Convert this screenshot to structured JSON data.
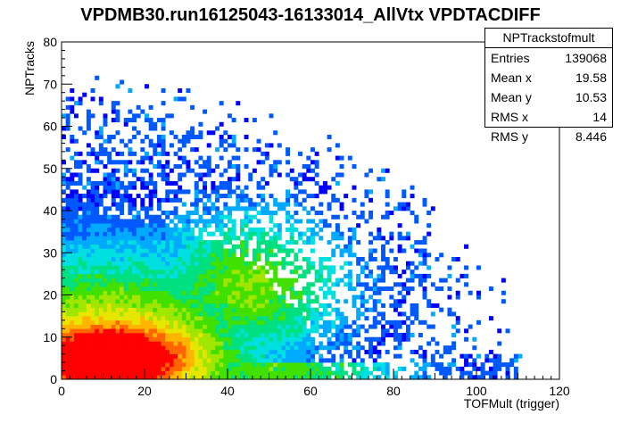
{
  "chart_data": {
    "type": "heatmap",
    "title": "VPDMB30.run16125043-16133014_AllVtx VPDTACDIFF",
    "xlabel": "TOFMult (trigger)",
    "ylabel": "NPTracks",
    "xlim": [
      0,
      120
    ],
    "ylim": [
      0,
      80
    ],
    "x_ticks": [
      "0",
      "20",
      "40",
      "60",
      "80",
      "100",
      "120"
    ],
    "y_ticks": [
      "0",
      "10",
      "20",
      "30",
      "40",
      "50",
      "60",
      "70",
      "80"
    ],
    "bins": {
      "nx": 120,
      "ny": 80
    },
    "palette": [
      "#0000ff",
      "#0059ff",
      "#00aaff",
      "#00e0e0",
      "#00e080",
      "#40e000",
      "#a0e600",
      "#e6e600",
      "#ffb400",
      "#ff6400",
      "#ff0000"
    ],
    "distribution": {
      "peak_x": 12,
      "peak_y": 5,
      "core_sigma_x": 12,
      "core_sigma_y": 4.5,
      "note_shape": "broad correlated band"
    },
    "stats": {
      "name": "NPTrackstofmult",
      "entries": "139068",
      "mean_x": "19.58",
      "mean_y": "10.53",
      "rms_x": "14",
      "rms_y": "8.446"
    }
  },
  "stats_labels": {
    "entries": "Entries",
    "mean_x": "Mean x",
    "mean_y": "Mean y",
    "rms_x": "RMS x",
    "rms_y": "RMS y"
  }
}
